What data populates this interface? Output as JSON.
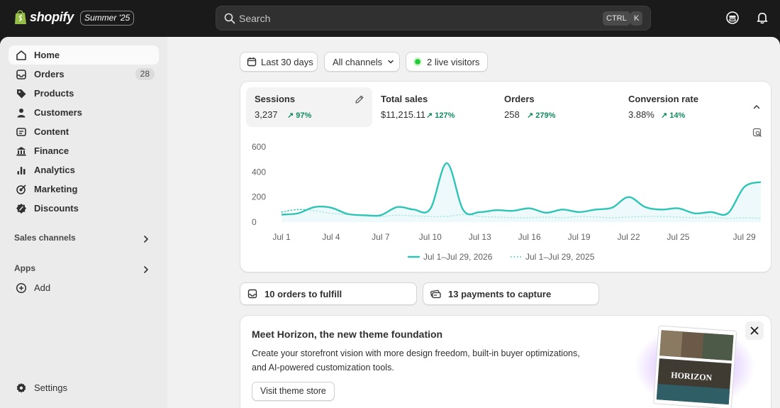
{
  "topbar": {
    "brand": "shopify",
    "edition": "Summer '25",
    "search_placeholder": "Search",
    "shortcut_keys": [
      "CTRL",
      "K"
    ]
  },
  "sidebar": {
    "items": [
      {
        "label": "Home",
        "icon": "home-icon",
        "active": true
      },
      {
        "label": "Orders",
        "icon": "inbox-icon",
        "badge": "28"
      },
      {
        "label": "Products",
        "icon": "tag-icon"
      },
      {
        "label": "Customers",
        "icon": "person-icon"
      },
      {
        "label": "Content",
        "icon": "content-icon"
      },
      {
        "label": "Finance",
        "icon": "bank-icon"
      },
      {
        "label": "Analytics",
        "icon": "bar-chart-icon"
      },
      {
        "label": "Marketing",
        "icon": "target-icon"
      },
      {
        "label": "Discounts",
        "icon": "discount-icon"
      }
    ],
    "sales_channels_label": "Sales channels",
    "apps_label": "Apps",
    "add_label": "Add",
    "settings_label": "Settings"
  },
  "filters": {
    "date_range": "Last 30 days",
    "channels": "All channels",
    "live_visitors": "2 live visitors"
  },
  "metrics": [
    {
      "label": "Sessions",
      "value": "3,237",
      "change": "97%"
    },
    {
      "label": "Total sales",
      "value": "$11,215.11",
      "change": "127%"
    },
    {
      "label": "Orders",
      "value": "258",
      "change": "279%"
    },
    {
      "label": "Conversion rate",
      "value": "3.88%",
      "change": "14%"
    }
  ],
  "chart_data": {
    "type": "line",
    "y_ticks": [
      "600",
      "400",
      "200",
      "0"
    ],
    "ylim": [
      0,
      600
    ],
    "x_ticks": [
      "Jul 1",
      "Jul 4",
      "Jul 7",
      "Jul 10",
      "Jul 13",
      "Jul 16",
      "Jul 19",
      "Jul 22",
      "Jul 25",
      "Jul 29"
    ],
    "x_tick_days": [
      1,
      4,
      7,
      10,
      13,
      16,
      19,
      22,
      25,
      29
    ],
    "x": [
      1,
      2,
      3,
      4,
      5,
      6,
      7,
      8,
      9,
      10,
      11,
      12,
      13,
      14,
      15,
      16,
      17,
      18,
      19,
      20,
      21,
      22,
      23,
      24,
      25,
      26,
      27,
      28,
      29,
      30
    ],
    "series": [
      {
        "name": "Jul 1–Jul 29, 2026",
        "values": [
          60,
          70,
          120,
          115,
          65,
          55,
          55,
          120,
          100,
          105,
          470,
          95,
          80,
          95,
          90,
          110,
          75,
          100,
          80,
          100,
          115,
          200,
          120,
          100,
          110,
          70,
          80,
          70,
          280,
          320
        ],
        "color": "#2ec4b6"
      },
      {
        "name": "Jul 1–Jul 29, 2025",
        "values": [
          80,
          100,
          90,
          70,
          60,
          50,
          45,
          55,
          50,
          45,
          45,
          60,
          45,
          40,
          35,
          35,
          40,
          35,
          45,
          40,
          35,
          40,
          45,
          45,
          40,
          35,
          40,
          30,
          35,
          30
        ],
        "color": "#2ec4b6",
        "dashed": true
      }
    ]
  },
  "actions": {
    "fulfill": "10 orders to fulfill",
    "capture": "13 payments to capture"
  },
  "promo": {
    "title": "Meet Horizon, the new theme foundation",
    "text": "Create your storefront vision with more design freedom, built-in buyer optimizations, and AI-powered customization tools.",
    "button": "Visit theme store",
    "image_text": "HORIZON"
  }
}
